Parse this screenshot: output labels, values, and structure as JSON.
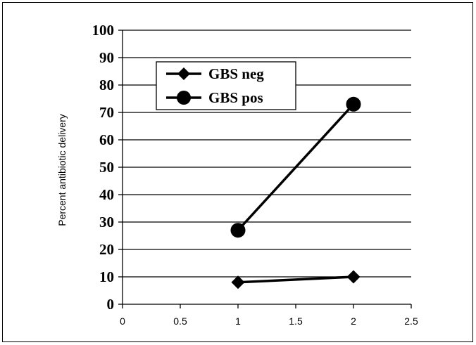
{
  "chart_data": {
    "type": "line",
    "title": "",
    "xlabel": "",
    "ylabel": "Percent antibiotic delivery",
    "xlim": [
      0,
      2.5
    ],
    "ylim": [
      0,
      100
    ],
    "x_ticks": [
      "0",
      "0.5",
      "1",
      "1.5",
      "2",
      "2.5"
    ],
    "y_ticks": [
      "0",
      "10",
      "20",
      "30",
      "40",
      "50",
      "60",
      "70",
      "80",
      "90",
      "100"
    ],
    "grid": "horizontal",
    "legend_position": "top-left",
    "series": [
      {
        "name": "GBS neg",
        "marker": "diamond",
        "color": "#000000",
        "x": [
          1,
          2
        ],
        "y": [
          8,
          10
        ]
      },
      {
        "name": "GBS pos",
        "marker": "circle",
        "color": "#000000",
        "x": [
          1,
          2
        ],
        "y": [
          27,
          73
        ]
      }
    ]
  }
}
